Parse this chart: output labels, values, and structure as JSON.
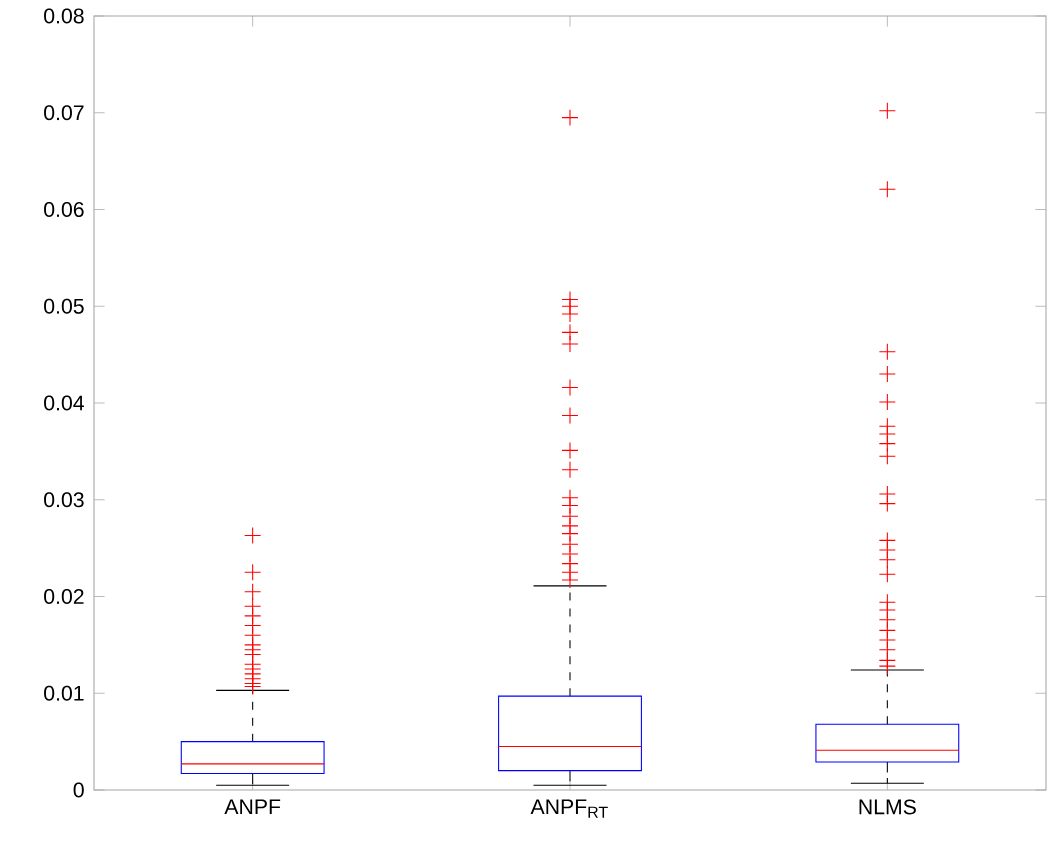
{
  "chart_data": {
    "type": "box",
    "categories": [
      "ANPF",
      "ANPF$_{RT}$",
      "NLMS"
    ],
    "color": "#0000ff",
    "marker": "cross",
    "ylim": [
      0,
      0.08
    ],
    "yticks": [
      0,
      0.01,
      0.02,
      0.03,
      0.04,
      0.05,
      0.06,
      0.07,
      0.08
    ],
    "grid": false,
    "boxes": [
      {
        "low": 0.0005,
        "q1": 0.0017,
        "median": 0.0027,
        "q3": 0.005,
        "high": 0.0103,
        "outliers": [
          0.0263,
          0.0225,
          0.0205,
          0.019,
          0.018,
          0.017,
          0.016,
          0.015,
          0.0145,
          0.014,
          0.013,
          0.0125,
          0.012,
          0.0115,
          0.011,
          0.0107
        ]
      },
      {
        "low": 0.0005,
        "q1": 0.002,
        "median": 0.0045,
        "q3": 0.0097,
        "high": 0.0211,
        "outliers": [
          0.0695,
          0.0507,
          0.05,
          0.0492,
          0.0473,
          0.0461,
          0.0416,
          0.0387,
          0.0351,
          0.0331,
          0.0302,
          0.0294,
          0.0283,
          0.0273,
          0.0265,
          0.0254,
          0.0244,
          0.0234,
          0.0225,
          0.0217
        ]
      },
      {
        "low": 0.0007,
        "q1": 0.0029,
        "median": 0.0041,
        "q3": 0.0068,
        "high": 0.0124,
        "outliers": [
          0.0702,
          0.0621,
          0.0453,
          0.043,
          0.0401,
          0.0376,
          0.0368,
          0.0358,
          0.0345,
          0.0306,
          0.0296,
          0.0258,
          0.0248,
          0.0238,
          0.0223,
          0.0194,
          0.0186,
          0.0176,
          0.0165,
          0.0155,
          0.0145,
          0.0134,
          0.0128
        ]
      }
    ]
  }
}
